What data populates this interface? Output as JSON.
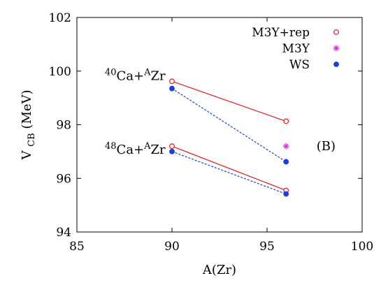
{
  "chart_data": {
    "type": "line",
    "xlabel": "A(Zr)",
    "ylabel_main": "V",
    "ylabel_sub": "CB",
    "ylabel_unit": "(MeV)",
    "xlim": [
      85,
      100
    ],
    "ylim": [
      94,
      102
    ],
    "xticks": [
      85,
      90,
      95,
      100
    ],
    "yticks": [
      94,
      96,
      98,
      100,
      102
    ],
    "grid": false,
    "legend_position": "top-right",
    "legend": [
      {
        "label": "M3Y+rep",
        "marker": "open-circle",
        "color": "#e41a1c"
      },
      {
        "label": "M3Y",
        "marker": "asterisk",
        "color": "#e020e0"
      },
      {
        "label": "WS",
        "marker": "filled-circle",
        "color": "#1a3fe0"
      }
    ],
    "series": [
      {
        "legend_index": 0,
        "group": "40Ca",
        "line": "solid",
        "color": "#e41a1c",
        "marker": "open-circle",
        "points": [
          [
            90,
            99.62
          ],
          [
            96,
            98.13
          ]
        ]
      },
      {
        "legend_index": 2,
        "group": "40Ca",
        "line": "dashed",
        "color": "#1a3fe0",
        "marker": "filled-circle",
        "points": [
          [
            90,
            99.35
          ],
          [
            96,
            96.62
          ]
        ]
      },
      {
        "legend_index": 1,
        "group": "40Ca",
        "line": "none",
        "color": "#e020e0",
        "marker": "asterisk",
        "points": [
          [
            96,
            97.2
          ]
        ]
      },
      {
        "legend_index": 0,
        "group": "48Ca",
        "line": "solid",
        "color": "#e41a1c",
        "marker": "open-circle",
        "points": [
          [
            90,
            97.2
          ],
          [
            96,
            95.55
          ]
        ]
      },
      {
        "legend_index": 2,
        "group": "48Ca",
        "line": "dashed",
        "color": "#1a3fe0",
        "marker": "filled-circle",
        "points": [
          [
            90,
            97.0
          ],
          [
            96,
            95.42
          ]
        ]
      }
    ],
    "annotations": [
      {
        "mass": "40",
        "text": "Ca+",
        "mass2": "A",
        "text2": "Zr",
        "x": 84.8,
        "y": 99.82
      },
      {
        "mass": "48",
        "text": "Ca+",
        "mass2": "A",
        "text2": "Zr",
        "x": 84.8,
        "y": 97.07
      }
    ],
    "panel_label": {
      "text": "(B)",
      "x": 97.6,
      "y": 97.2
    }
  }
}
